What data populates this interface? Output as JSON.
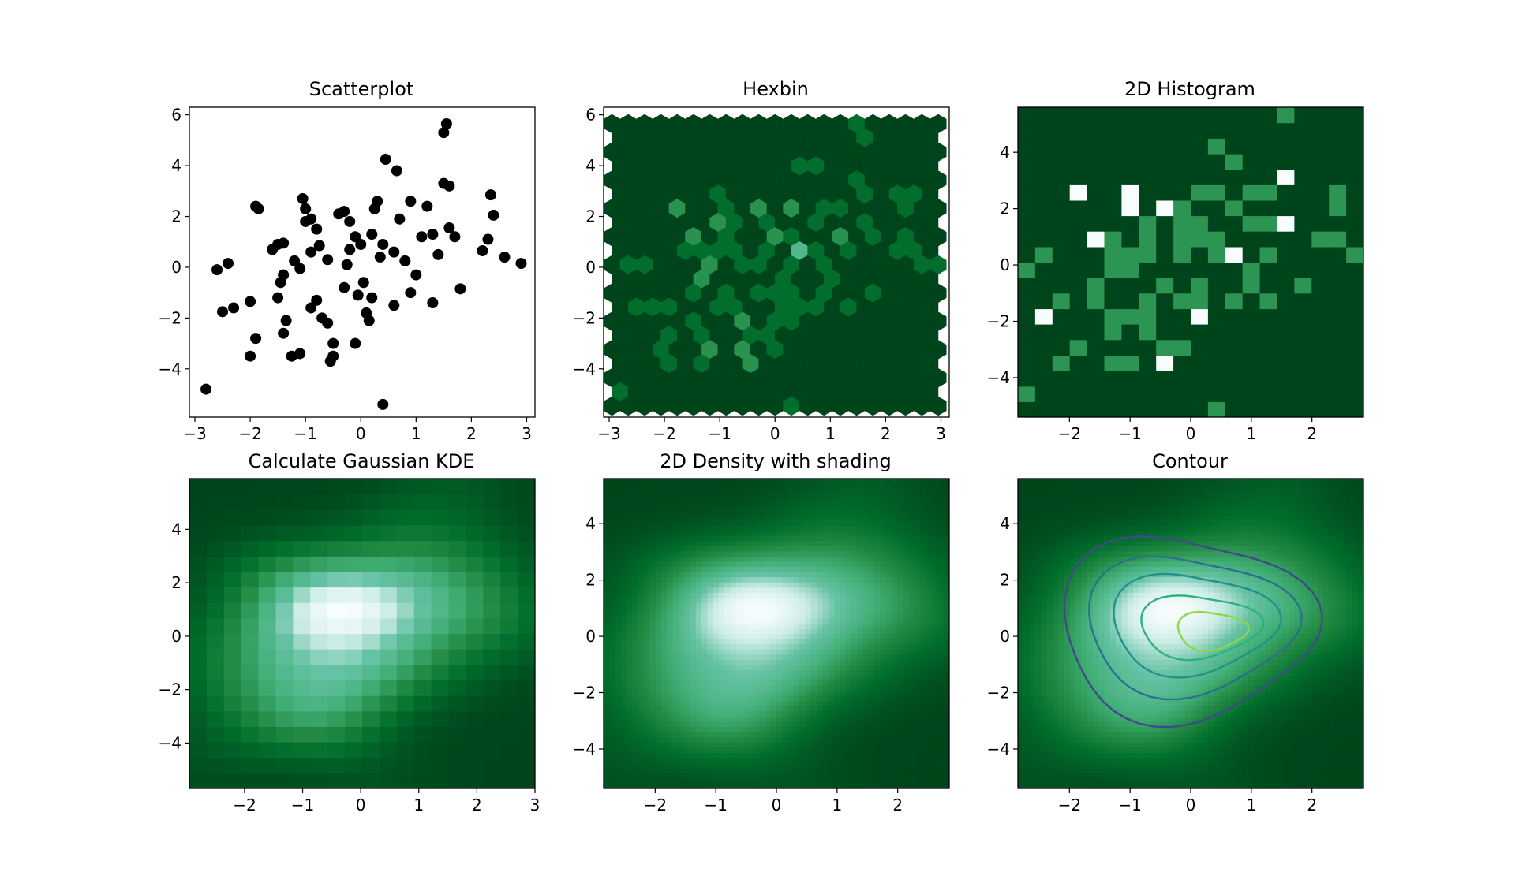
{
  "colors": {
    "background": "#ffffff",
    "axes_frame": "#000000",
    "points": "#000000",
    "cmap_low": "#00441b",
    "cmap_mid": "#238b45",
    "cmap_high": "#f7fcf5",
    "contour_levels": [
      "#404a88",
      "#2f6f8e",
      "#21918c",
      "#2db27d",
      "#8ed645"
    ]
  },
  "chart_data": [
    {
      "type": "scatter",
      "title": "Scatterplot",
      "xticks": [
        "−3",
        "−2",
        "−1",
        "0",
        "1",
        "2",
        "3"
      ],
      "yticks": [
        "−4",
        "−2",
        "0",
        "2",
        "4",
        "6"
      ],
      "xlim": [
        -3.1,
        3.15
      ],
      "ylim": [
        -5.9,
        6.3
      ],
      "marker_color": "#000000",
      "points": [
        [
          -2.8,
          -4.8
        ],
        [
          0.4,
          -5.4
        ],
        [
          -2.6,
          -0.1
        ],
        [
          -2.4,
          0.15
        ],
        [
          -2.5,
          -1.75
        ],
        [
          -2.3,
          -1.6
        ],
        [
          -2.0,
          -1.35
        ],
        [
          -1.9,
          -2.8
        ],
        [
          -2.0,
          -3.5
        ],
        [
          -1.9,
          2.4
        ],
        [
          -1.85,
          2.3
        ],
        [
          -1.6,
          0.7
        ],
        [
          -1.5,
          0.9
        ],
        [
          -1.4,
          0.95
        ],
        [
          -1.4,
          -0.3
        ],
        [
          -1.45,
          -0.6
        ],
        [
          -1.35,
          -2.1
        ],
        [
          -1.4,
          -2.6
        ],
        [
          -1.25,
          -3.5
        ],
        [
          -1.1,
          -3.4
        ],
        [
          -1.2,
          0.25
        ],
        [
          -1.1,
          -0.05
        ],
        [
          -1.0,
          2.3
        ],
        [
          -1.0,
          1.8
        ],
        [
          -1.05,
          2.7
        ],
        [
          -0.9,
          1.9
        ],
        [
          -0.8,
          1.5
        ],
        [
          -0.9,
          0.6
        ],
        [
          -0.75,
          0.85
        ],
        [
          -0.8,
          -1.3
        ],
        [
          -0.9,
          -1.6
        ],
        [
          -0.7,
          -2.0
        ],
        [
          -0.6,
          -2.2
        ],
        [
          -0.5,
          -3.0
        ],
        [
          -0.5,
          -3.5
        ],
        [
          -0.55,
          -3.7
        ],
        [
          -0.4,
          2.1
        ],
        [
          -0.3,
          2.2
        ],
        [
          -0.2,
          1.8
        ],
        [
          -0.25,
          0.1
        ],
        [
          -0.2,
          0.7
        ],
        [
          -0.1,
          1.2
        ],
        [
          0.0,
          0.9
        ],
        [
          0.05,
          -0.6
        ],
        [
          -0.05,
          -1.1
        ],
        [
          -0.1,
          -3.0
        ],
        [
          0.1,
          -1.8
        ],
        [
          0.15,
          -2.1
        ],
        [
          0.2,
          1.3
        ],
        [
          0.25,
          2.3
        ],
        [
          0.3,
          2.6
        ],
        [
          0.35,
          0.4
        ],
        [
          0.4,
          0.9
        ],
        [
          0.45,
          4.25
        ],
        [
          0.6,
          0.6
        ],
        [
          0.65,
          3.8
        ],
        [
          0.7,
          1.9
        ],
        [
          0.8,
          0.25
        ],
        [
          0.9,
          -1.0
        ],
        [
          1.0,
          -0.3
        ],
        [
          1.1,
          1.2
        ],
        [
          1.2,
          2.4
        ],
        [
          1.3,
          1.3
        ],
        [
          1.4,
          0.5
        ],
        [
          1.5,
          3.3
        ],
        [
          1.6,
          3.2
        ],
        [
          1.55,
          5.65
        ],
        [
          1.5,
          5.3
        ],
        [
          1.6,
          1.55
        ],
        [
          1.7,
          1.2
        ],
        [
          1.8,
          -0.85
        ],
        [
          2.2,
          0.65
        ],
        [
          2.3,
          1.1
        ],
        [
          2.35,
          2.85
        ],
        [
          2.4,
          2.05
        ],
        [
          2.6,
          0.4
        ],
        [
          2.9,
          0.15
        ],
        [
          -0.3,
          -0.8
        ],
        [
          0.2,
          -1.2
        ],
        [
          0.6,
          -1.5
        ],
        [
          1.3,
          -1.4
        ],
        [
          -0.6,
          0.3
        ],
        [
          -1.5,
          -1.2
        ],
        [
          0.9,
          2.6
        ]
      ]
    },
    {
      "type": "heatmap",
      "subtype": "hexbin",
      "title": "Hexbin",
      "xticks": [
        "−3",
        "−2",
        "−1",
        "0",
        "1",
        "2",
        "3"
      ],
      "yticks": [
        "−4",
        "−2",
        "0",
        "2",
        "4",
        "6"
      ],
      "xlim": [
        -3.1,
        3.15
      ],
      "ylim": [
        -5.9,
        6.3
      ],
      "colormap": "BuGn_r"
    },
    {
      "type": "heatmap",
      "subtype": "hist2d",
      "title": "2D Histogram",
      "xticks": [
        "−2",
        "−1",
        "0",
        "1",
        "2"
      ],
      "yticks": [
        "−4",
        "−2",
        "0",
        "2",
        "4"
      ],
      "xlim": [
        -2.85,
        2.85
      ],
      "ylim": [
        -5.4,
        5.6
      ],
      "colormap": "BuGn_r"
    },
    {
      "type": "heatmap",
      "subtype": "kde_grid",
      "title": "Calculate Gaussian KDE",
      "xticks": [
        "−2",
        "−1",
        "0",
        "1",
        "2",
        "3"
      ],
      "yticks": [
        "−4",
        "−2",
        "0",
        "2",
        "4"
      ],
      "xlim": [
        -2.95,
        3.0
      ],
      "ylim": [
        -5.7,
        5.9
      ],
      "colormap": "BuGn_r"
    },
    {
      "type": "heatmap",
      "subtype": "kde_gouraud",
      "title": "2D Density with shading",
      "xticks": [
        "−2",
        "−1",
        "0",
        "1",
        "2"
      ],
      "yticks": [
        "−4",
        "−2",
        "0",
        "2",
        "4"
      ],
      "xlim": [
        -2.85,
        2.85
      ],
      "ylim": [
        -5.4,
        5.6
      ],
      "colormap": "BuGn_r"
    },
    {
      "type": "heatmap",
      "subtype": "kde_contour",
      "title": "Contour",
      "xticks": [
        "−2",
        "−1",
        "0",
        "1",
        "2"
      ],
      "yticks": [
        "−4",
        "−2",
        "0",
        "2",
        "4"
      ],
      "xlim": [
        -2.85,
        2.85
      ],
      "ylim": [
        -5.4,
        5.6
      ],
      "colormap": "BuGn_r",
      "contour_levels": 5
    }
  ]
}
